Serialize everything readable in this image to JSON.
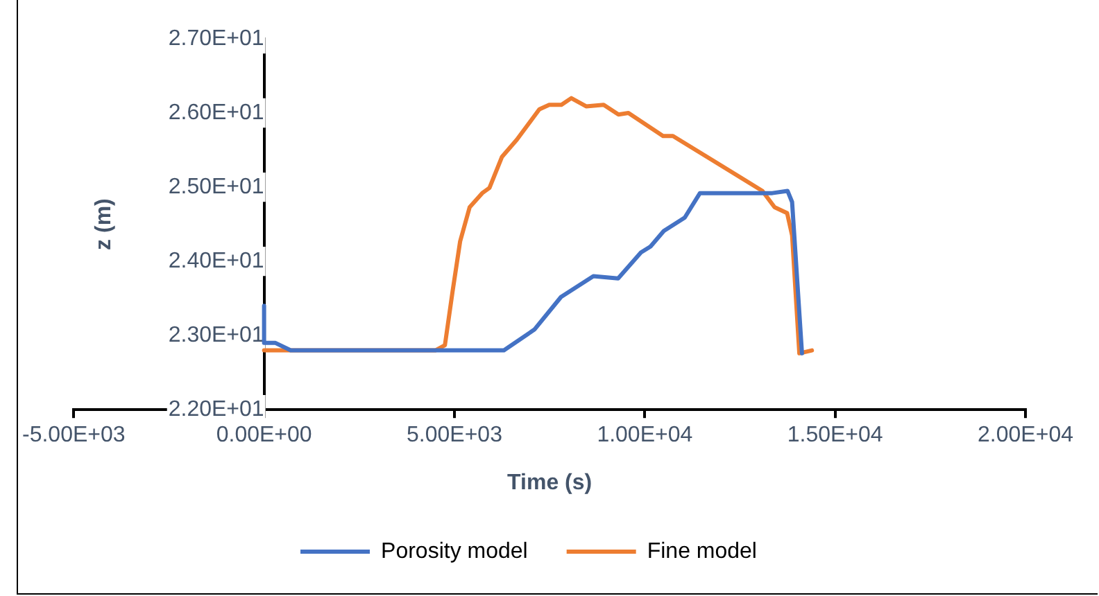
{
  "chart_data": {
    "type": "line",
    "xlabel": "Time (s)",
    "ylabel": "z (m)",
    "xlim": [
      -5000,
      20000
    ],
    "xticks": [
      {
        "value": -5000,
        "label": "-5.00E+03"
      },
      {
        "value": 0,
        "label": "0.00E+00"
      },
      {
        "value": 5000,
        "label": "5.00E+03"
      },
      {
        "value": 10000,
        "label": "1.00E+04"
      },
      {
        "value": 15000,
        "label": "1.50E+04"
      },
      {
        "value": 20000,
        "label": "2.00E+04"
      }
    ],
    "ylim": [
      22,
      27
    ],
    "yticks": [
      {
        "value": 22,
        "label": "2.20E+01"
      },
      {
        "value": 23,
        "label": "2.30E+01"
      },
      {
        "value": 24,
        "label": "2.40E+01"
      },
      {
        "value": 25,
        "label": "2.50E+01"
      },
      {
        "value": 26,
        "label": "2.60E+01"
      },
      {
        "value": 27,
        "label": "2.70E+01"
      }
    ],
    "grid": false,
    "legend": "bottom",
    "marker": "none",
    "line_style": "solid",
    "series": [
      {
        "name": "Porosity model",
        "color": "#4472c4",
        "x": [
          0,
          0,
          300,
          700,
          6300,
          7100,
          7800,
          8650,
          9300,
          9900,
          10150,
          10500,
          11050,
          11450,
          13350,
          13750,
          13870,
          14130
        ],
        "values": [
          23.4,
          22.9,
          22.9,
          22.8,
          22.8,
          23.08,
          23.52,
          23.8,
          23.77,
          24.12,
          24.2,
          24.41,
          24.59,
          24.92,
          24.92,
          24.95,
          24.8,
          22.76
        ]
      },
      {
        "name": "Fine model",
        "color": "#ed7d31",
        "x": [
          0,
          4500,
          4750,
          4950,
          5150,
          5400,
          5730,
          5920,
          6250,
          6640,
          7230,
          7490,
          7810,
          8070,
          8460,
          8920,
          9310,
          9570,
          10480,
          10740,
          13090,
          13410,
          13740,
          13870,
          14060,
          14390
        ],
        "values": [
          22.8,
          22.8,
          22.87,
          23.59,
          24.27,
          24.73,
          24.92,
          24.99,
          25.41,
          25.64,
          26.05,
          26.11,
          26.11,
          26.2,
          26.09,
          26.11,
          25.98,
          26.0,
          25.69,
          25.69,
          24.95,
          24.73,
          24.65,
          24.35,
          22.76,
          22.8
        ]
      }
    ]
  }
}
